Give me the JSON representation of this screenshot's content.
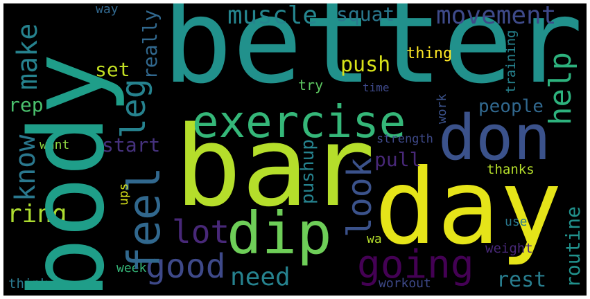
{
  "words": [
    {
      "id": "better",
      "text": "better",
      "color": "#21918c"
    },
    {
      "id": "body",
      "text": "body",
      "color": "#1f9e89"
    },
    {
      "id": "bar",
      "text": "bar",
      "color": "#b5de2b"
    },
    {
      "id": "day",
      "text": "day",
      "color": "#e5e419"
    },
    {
      "id": "exercise",
      "text": "exercise",
      "color": "#35b779"
    },
    {
      "id": "don",
      "text": "don",
      "color": "#3b528b"
    },
    {
      "id": "dip",
      "text": "dip",
      "color": "#6ece58"
    },
    {
      "id": "feel",
      "text": "feel",
      "color": "#31688e"
    },
    {
      "id": "going",
      "text": "going",
      "color": "#440154"
    },
    {
      "id": "good",
      "text": "good",
      "color": "#3e4989"
    },
    {
      "id": "lot",
      "text": "lot",
      "color": "#482878"
    },
    {
      "id": "leg",
      "text": "leg",
      "color": "#26828e"
    },
    {
      "id": "know",
      "text": "know",
      "color": "#2a788e"
    },
    {
      "id": "make",
      "text": "make",
      "color": "#26828e"
    },
    {
      "id": "look",
      "text": "look",
      "color": "#3b528b"
    },
    {
      "id": "muscle",
      "text": "muscle",
      "color": "#25858e"
    },
    {
      "id": "movement",
      "text": "movement",
      "color": "#3e4a89"
    },
    {
      "id": "help",
      "text": "help",
      "color": "#2db27d"
    },
    {
      "id": "routine",
      "text": "routine",
      "color": "#21918c"
    },
    {
      "id": "need",
      "text": "need",
      "color": "#26828e"
    },
    {
      "id": "rest",
      "text": "rest",
      "color": "#287d8e"
    },
    {
      "id": "ring",
      "text": "ring",
      "color": "#addc30"
    },
    {
      "id": "people",
      "text": "people",
      "color": "#31688e"
    },
    {
      "id": "push",
      "text": "push",
      "color": "#d8e219"
    },
    {
      "id": "squat",
      "text": "squat",
      "color": "#2a788e"
    },
    {
      "id": "pull",
      "text": "pull",
      "color": "#482878"
    },
    {
      "id": "pushup",
      "text": "pushup",
      "color": "#26828e"
    },
    {
      "id": "start",
      "text": "start",
      "color": "#46327e"
    },
    {
      "id": "set",
      "text": "set",
      "color": "#c2df23"
    },
    {
      "id": "rep",
      "text": "rep",
      "color": "#4ac16d"
    },
    {
      "id": "really",
      "text": "really",
      "color": "#31688e"
    },
    {
      "id": "thing",
      "text": "thing",
      "color": "#fde725"
    },
    {
      "id": "training",
      "text": "training",
      "color": "#26828e"
    },
    {
      "id": "try",
      "text": "try",
      "color": "#5ec962"
    },
    {
      "id": "time",
      "text": "time",
      "color": "#3e4989"
    },
    {
      "id": "work",
      "text": "work",
      "color": "#3b528b"
    },
    {
      "id": "strength",
      "text": "strength",
      "color": "#3e4989"
    },
    {
      "id": "want",
      "text": "want",
      "color": "#90d743"
    },
    {
      "id": "thanks",
      "text": "thanks",
      "color": "#b5de2b"
    },
    {
      "id": "ups",
      "text": "ups",
      "color": "#d8e219"
    },
    {
      "id": "use",
      "text": "use",
      "color": "#2a788e"
    },
    {
      "id": "wa",
      "text": "wa",
      "color": "#b5de2b"
    },
    {
      "id": "weight",
      "text": "weight",
      "color": "#482878"
    },
    {
      "id": "week",
      "text": "week",
      "color": "#35b779"
    },
    {
      "id": "think",
      "text": "think",
      "color": "#2a788e"
    },
    {
      "id": "workout",
      "text": "workout",
      "color": "#3e4989"
    },
    {
      "id": "way",
      "text": "way",
      "color": "#31688e"
    }
  ]
}
